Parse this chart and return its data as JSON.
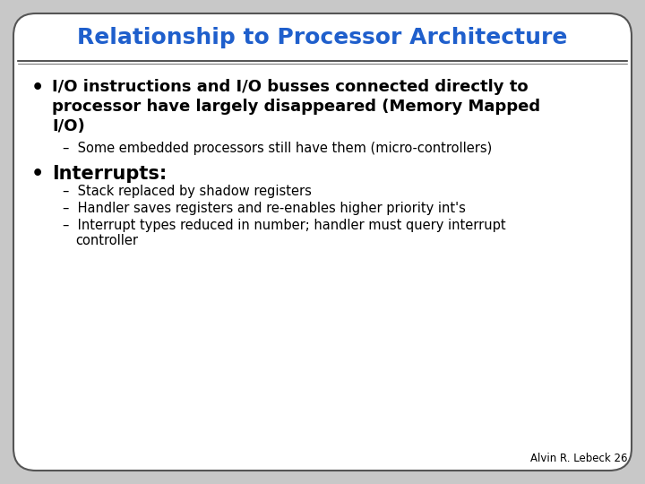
{
  "title": "Relationship to Processor Architecture",
  "title_color": "#1F5FCC",
  "bg_color": "#FFFFFF",
  "border_color": "#555555",
  "slide_bg": "#C8C8C8",
  "bullet1_line1": "I/O instructions and I/O busses connected directly to",
  "bullet1_line2": "processor have largely disappeared (Memory Mapped",
  "bullet1_line3": "I/O)",
  "sub1": "Some embedded processors still have them (micro-controllers)",
  "bullet2": "Interrupts:",
  "sub2a": "Stack replaced by shadow registers",
  "sub2b": "Handler saves registers and re-enables higher priority int's",
  "sub2c_line1": "Interrupt types reduced in number; handler must query interrupt",
  "sub2c_line2": "controller",
  "footer": "Alvin R. Lebeck 26",
  "line_color": "#333333"
}
